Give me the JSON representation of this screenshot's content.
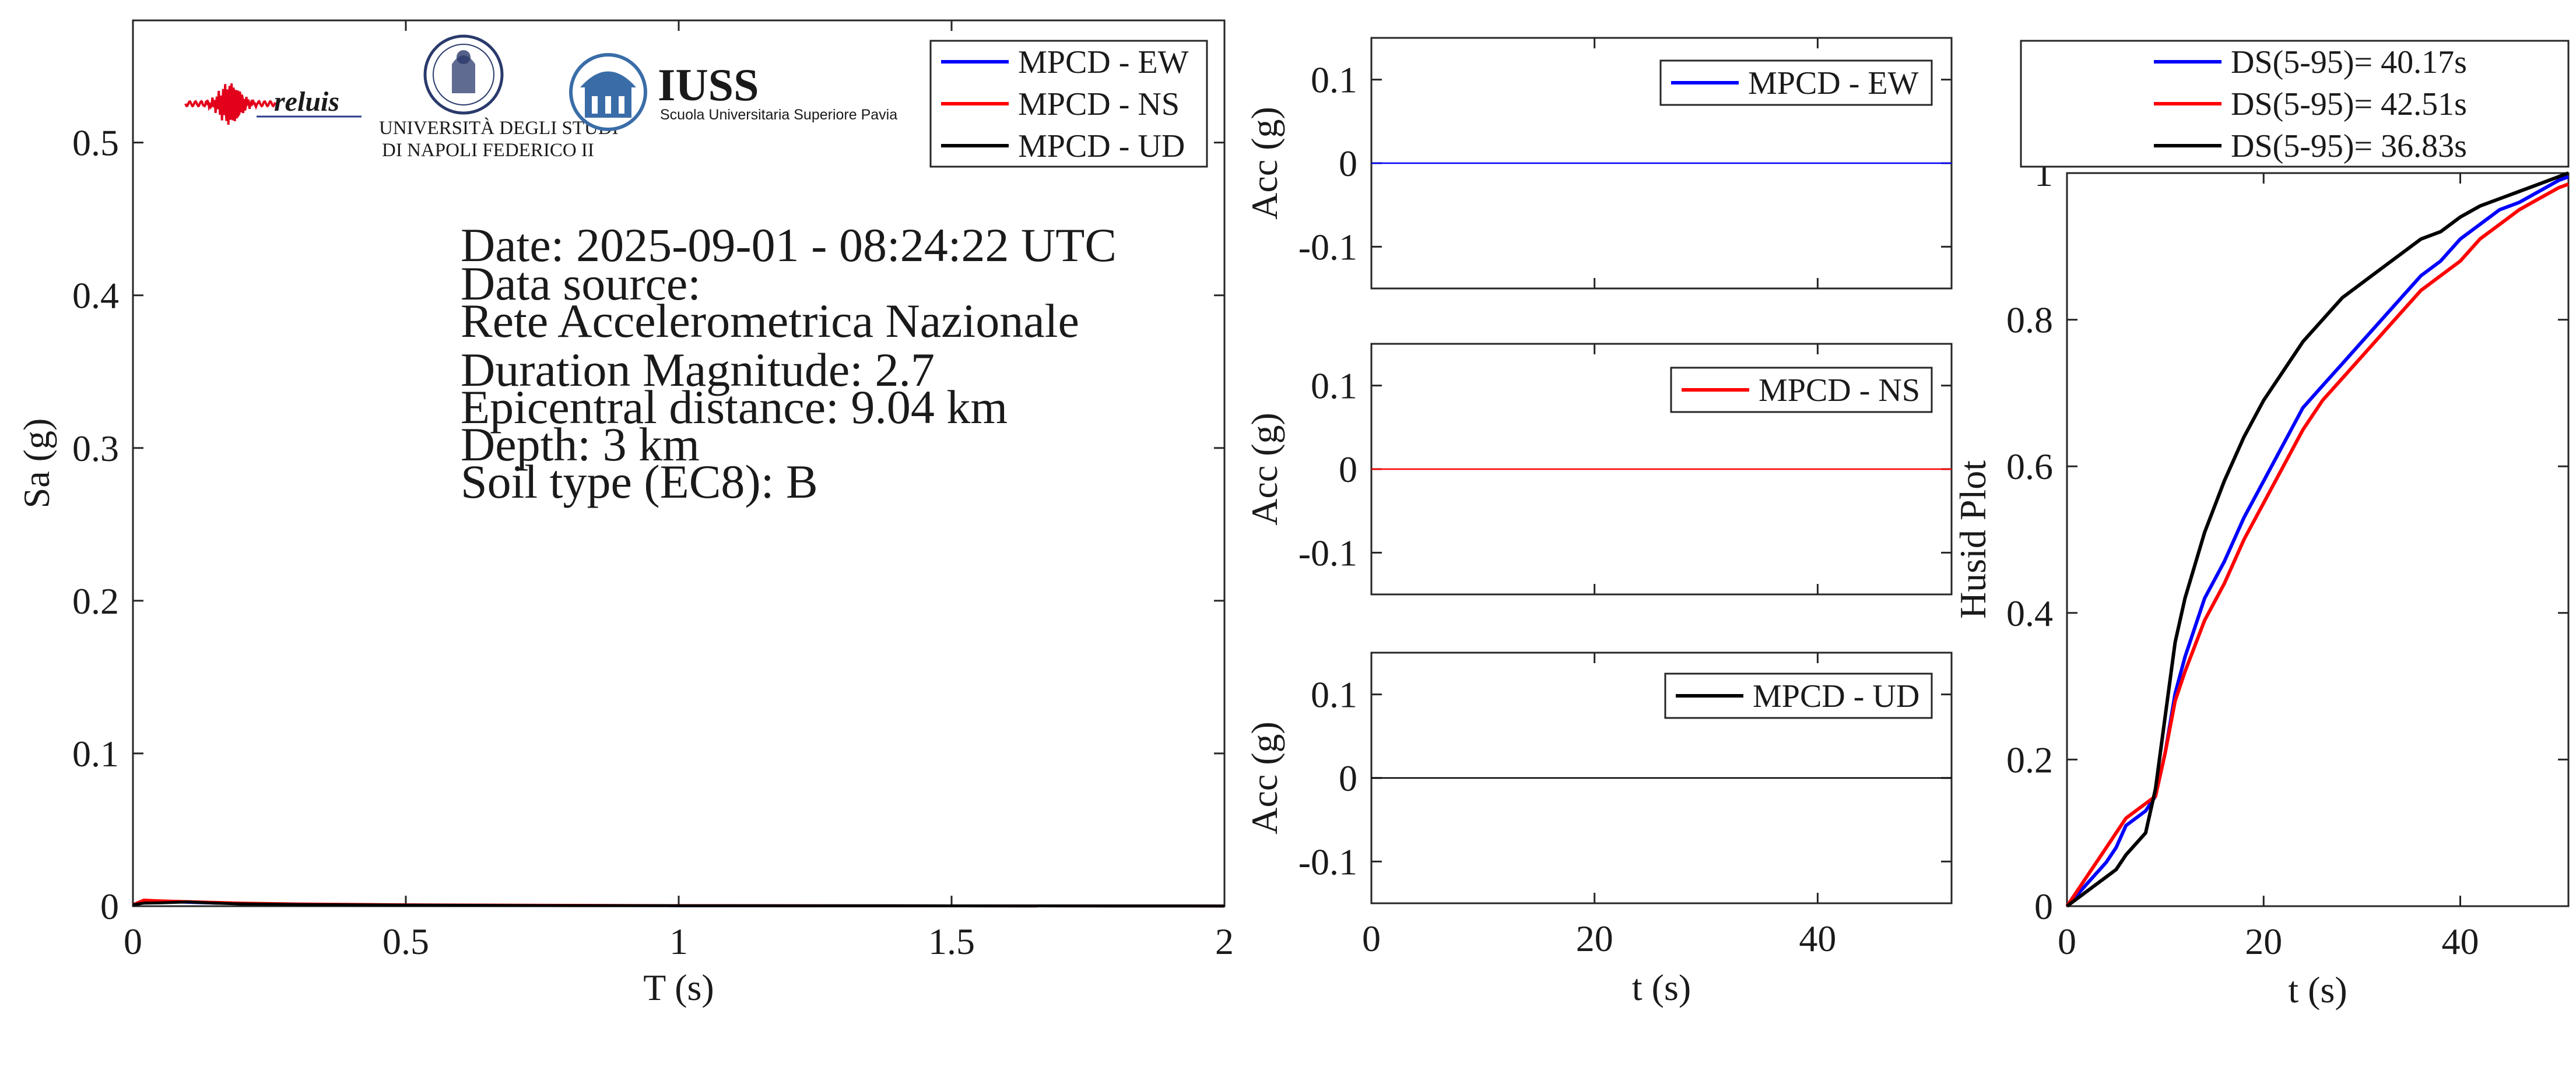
{
  "chart_data": [
    {
      "type": "line",
      "id": "spectrum",
      "xlabel": "T (s)",
      "ylabel": "Sa (g)",
      "xlim": [
        0,
        2
      ],
      "ylim": [
        0,
        0.58
      ],
      "xticks": [
        0,
        0.5,
        1,
        1.5,
        2
      ],
      "xtick_labels": [
        "0",
        "0.5",
        "1",
        "1.5",
        "2"
      ],
      "yticks": [
        0,
        0.1,
        0.2,
        0.3,
        0.4,
        0.5
      ],
      "ytick_labels": [
        "0",
        "0.1",
        "0.2",
        "0.3",
        "0.4",
        "0.5"
      ],
      "grid": false,
      "legend_position": "top-right",
      "x": [
        0,
        0.02,
        0.05,
        0.1,
        0.15,
        0.2,
        0.3,
        0.5,
        0.75,
        1,
        1.5,
        2
      ],
      "series": [
        {
          "name": "MPCD - EW",
          "color": "#0000ff",
          "values": [
            0.001,
            0.003,
            0.003,
            0.0025,
            0.002,
            0.0018,
            0.0013,
            0.0008,
            0.0005,
            0.0003,
            0.0002,
            0.0001
          ]
        },
        {
          "name": "MPCD - NS",
          "color": "#ff0000",
          "values": [
            0.001,
            0.004,
            0.0035,
            0.003,
            0.0025,
            0.002,
            0.0015,
            0.0009,
            0.0006,
            0.0004,
            0.0002,
            0.0001
          ]
        },
        {
          "name": "MPCD - UD",
          "color": "#000000",
          "values": [
            0.001,
            0.002,
            0.0022,
            0.0028,
            0.002,
            0.0015,
            0.0011,
            0.0007,
            0.0004,
            0.0003,
            0.0002,
            0.0001
          ]
        }
      ]
    },
    {
      "type": "line",
      "id": "acc_ew",
      "xlabel": "",
      "ylabel": "Acc (g)",
      "xlim": [
        0,
        52
      ],
      "ylim": [
        -0.15,
        0.15
      ],
      "yticks": [
        0.1,
        0,
        -0.1
      ],
      "ytick_labels": [
        "0.1",
        "0",
        "-0.1"
      ],
      "grid": false,
      "legend_position": "top-right",
      "series": [
        {
          "name": "MPCD - EW",
          "color": "#0000ff",
          "x": [
            0,
            52
          ],
          "values": [
            0,
            0
          ]
        }
      ]
    },
    {
      "type": "line",
      "id": "acc_ns",
      "xlabel": "",
      "ylabel": "Acc (g)",
      "xlim": [
        0,
        52
      ],
      "ylim": [
        -0.15,
        0.15
      ],
      "yticks": [
        0.1,
        0,
        -0.1
      ],
      "ytick_labels": [
        "0.1",
        "0",
        "-0.1"
      ],
      "grid": false,
      "legend_position": "top-right",
      "series": [
        {
          "name": "MPCD - NS",
          "color": "#ff0000",
          "x": [
            0,
            52
          ],
          "values": [
            0,
            0
          ]
        }
      ]
    },
    {
      "type": "line",
      "id": "acc_ud",
      "xlabel": "t (s)",
      "ylabel": "Acc (g)",
      "xlim": [
        0,
        52
      ],
      "ylim": [
        -0.15,
        0.15
      ],
      "xticks": [
        0,
        20,
        40
      ],
      "xtick_labels": [
        "0",
        "20",
        "40"
      ],
      "yticks": [
        0.1,
        0,
        -0.1
      ],
      "ytick_labels": [
        "0.1",
        "0",
        "-0.1"
      ],
      "grid": false,
      "legend_position": "top-right",
      "series": [
        {
          "name": "MPCD - UD",
          "color": "#000000",
          "x": [
            0,
            52
          ],
          "values": [
            0,
            0
          ]
        }
      ]
    },
    {
      "type": "line",
      "id": "husid",
      "xlabel": "t (s)",
      "ylabel": "Husid Plot",
      "xlim": [
        0,
        51
      ],
      "ylim": [
        0,
        1
      ],
      "xticks": [
        0,
        20,
        40
      ],
      "xtick_labels": [
        "0",
        "20",
        "40"
      ],
      "yticks": [
        0,
        0.2,
        0.4,
        0.6,
        0.8,
        1
      ],
      "ytick_labels": [
        "0",
        "0.2",
        "0.4",
        "0.6",
        "0.8",
        "1"
      ],
      "grid": false,
      "legend_position": "outside-top",
      "series": [
        {
          "name": "DS(5-95)= 40.17s",
          "color": "#0000ff",
          "x": [
            0,
            2,
            4,
            5,
            6,
            8,
            9,
            10,
            11,
            12,
            14,
            16,
            18,
            20,
            22,
            24,
            26,
            28,
            30,
            32,
            34,
            36,
            38,
            40,
            42,
            44,
            46,
            48,
            50,
            51
          ],
          "values": [
            0,
            0.03,
            0.06,
            0.08,
            0.11,
            0.13,
            0.15,
            0.21,
            0.29,
            0.34,
            0.42,
            0.47,
            0.53,
            0.58,
            0.63,
            0.68,
            0.71,
            0.74,
            0.77,
            0.8,
            0.83,
            0.86,
            0.88,
            0.91,
            0.93,
            0.95,
            0.96,
            0.975,
            0.99,
            0.995
          ]
        },
        {
          "name": "DS(5-95)= 42.51s",
          "color": "#ff0000",
          "x": [
            0,
            2,
            4,
            5,
            6,
            8,
            9,
            10,
            11,
            12,
            14,
            16,
            18,
            20,
            22,
            24,
            26,
            28,
            30,
            32,
            34,
            36,
            38,
            40,
            42,
            44,
            46,
            48,
            50,
            51
          ],
          "values": [
            0,
            0.04,
            0.08,
            0.1,
            0.12,
            0.14,
            0.15,
            0.21,
            0.28,
            0.32,
            0.39,
            0.44,
            0.5,
            0.55,
            0.6,
            0.65,
            0.69,
            0.72,
            0.75,
            0.78,
            0.81,
            0.84,
            0.86,
            0.88,
            0.91,
            0.93,
            0.95,
            0.965,
            0.98,
            0.985
          ]
        },
        {
          "name": "DS(5-95)= 36.83s",
          "color": "#000000",
          "x": [
            0,
            2,
            4,
            5,
            6,
            8,
            9,
            10,
            11,
            12,
            14,
            16,
            18,
            20,
            22,
            24,
            26,
            28,
            30,
            32,
            34,
            36,
            38,
            40,
            42,
            44,
            46,
            48,
            50,
            51
          ],
          "values": [
            0,
            0.02,
            0.04,
            0.05,
            0.07,
            0.1,
            0.16,
            0.26,
            0.36,
            0.42,
            0.51,
            0.58,
            0.64,
            0.69,
            0.73,
            0.77,
            0.8,
            0.83,
            0.85,
            0.87,
            0.89,
            0.91,
            0.92,
            0.94,
            0.955,
            0.965,
            0.975,
            0.985,
            0.995,
            1.0
          ]
        }
      ]
    }
  ],
  "info": {
    "date": "Date: 2025-09-01 - 08:24:22 UTC",
    "source_label": "Data source:",
    "source_name": "Rete Accelerometrica Nazionale",
    "magnitude": "Duration Magnitude: 2.7",
    "distance": "Epicentral distance: 9.04 km",
    "depth": "Depth: 3 km",
    "soil": "Soil type (EC8): B"
  },
  "logos": {
    "reluis": "reluis",
    "unina_line1": "UNIVERSITÀ DEGLI STUDI",
    "unina_line2": "DI NAPOLI FEDERICO II",
    "iuss_name": "IUSS",
    "iuss_sub": "Scuola Universitaria Superiore Pavia"
  }
}
